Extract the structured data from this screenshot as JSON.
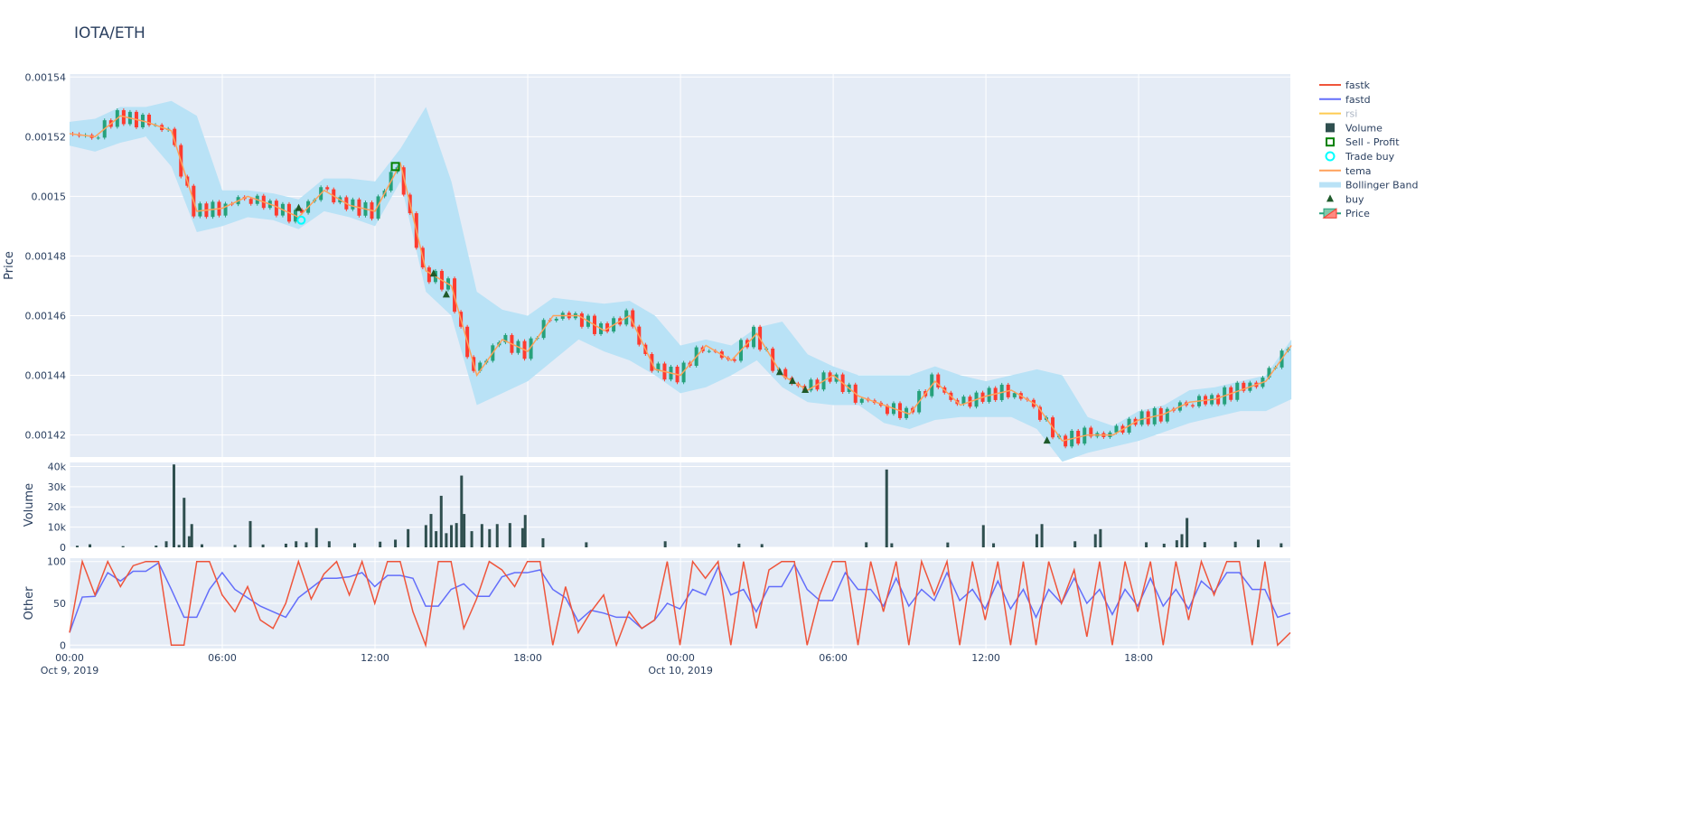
{
  "title": "IOTA/ETH",
  "chart_data": {
    "type": "candlestick-subplots",
    "title": "IOTA/ETH",
    "x_axis": {
      "start": "2019-10-09 00:00",
      "end": "2019-10-10 23:55",
      "tick_labels": [
        [
          "00:00",
          "Oct 9, 2019"
        ],
        [
          "06:00",
          ""
        ],
        [
          "12:00",
          ""
        ],
        [
          "18:00",
          ""
        ],
        [
          "00:00",
          "Oct 10, 2019"
        ],
        [
          "06:00",
          ""
        ],
        [
          "12:00",
          ""
        ],
        [
          "18:00",
          ""
        ]
      ]
    },
    "price": {
      "ylabel": "Price",
      "ylim": [
        0.0014126,
        0.001541
      ],
      "ticks": [
        "0.00142",
        "0.00144",
        "0.00146",
        "0.00148",
        "0.0015",
        "0.00152",
        "0.00154"
      ],
      "close_hourly": [
        0.001521,
        0.00152,
        0.001527,
        0.001525,
        0.001522,
        0.001495,
        0.001496,
        0.0015,
        0.001497,
        0.001493,
        0.001502,
        0.001497,
        0.001495,
        0.001511,
        0.001475,
        0.00147,
        0.00144,
        0.001452,
        0.001448,
        0.00146,
        0.00146,
        0.001455,
        0.00146,
        0.001442,
        0.00144,
        0.00145,
        0.001445,
        0.001454,
        0.00144,
        0.001435,
        0.00144,
        0.001433,
        0.00143,
        0.001427,
        0.001438,
        0.00143,
        0.001433,
        0.001435,
        0.00143,
        0.001418,
        0.00142,
        0.00142,
        0.001425,
        0.001427,
        0.001431,
        0.001432,
        0.001435,
        0.001438,
        0.00145
      ],
      "bb_upper": [
        0.001525,
        0.001526,
        0.00153,
        0.00153,
        0.001532,
        0.001527,
        0.001502,
        0.001502,
        0.001501,
        0.001499,
        0.001506,
        0.001506,
        0.001505,
        0.001516,
        0.00153,
        0.001505,
        0.001468,
        0.001462,
        0.00146,
        0.001466,
        0.001465,
        0.001464,
        0.001465,
        0.00146,
        0.00145,
        0.001452,
        0.00145,
        0.001456,
        0.001458,
        0.001447,
        0.001443,
        0.00144,
        0.00144,
        0.00144,
        0.001443,
        0.00144,
        0.001438,
        0.00144,
        0.001442,
        0.00144,
        0.001426,
        0.001423,
        0.001428,
        0.00143,
        0.001435,
        0.001436,
        0.001438,
        0.00144,
        0.001452
      ],
      "bb_lower": [
        0.001517,
        0.001515,
        0.001518,
        0.00152,
        0.00151,
        0.001488,
        0.00149,
        0.001493,
        0.001492,
        0.001489,
        0.001495,
        0.001493,
        0.00149,
        0.001505,
        0.001468,
        0.00146,
        0.00143,
        0.001434,
        0.001438,
        0.001445,
        0.001452,
        0.001448,
        0.001445,
        0.00144,
        0.001434,
        0.001436,
        0.00144,
        0.001445,
        0.001436,
        0.001431,
        0.00143,
        0.00143,
        0.001424,
        0.001422,
        0.001425,
        0.001426,
        0.001426,
        0.001426,
        0.001422,
        0.001411,
        0.001414,
        0.001416,
        0.001418,
        0.001421,
        0.001424,
        0.001426,
        0.001428,
        0.001428,
        0.001432
      ],
      "buy_markers": [
        [
          9,
          0.001496
        ],
        [
          14.3,
          0.001474
        ],
        [
          14.8,
          0.001467
        ],
        [
          27.9,
          0.001441
        ],
        [
          28.4,
          0.001438
        ],
        [
          28.9,
          0.001435
        ],
        [
          38.4,
          0.001418
        ]
      ],
      "trade_buy": [
        [
          9.1,
          0.001492
        ]
      ],
      "sell_profit": [
        [
          12.8,
          0.00151
        ]
      ]
    },
    "volume": {
      "ylabel": "Volume",
      "ylim": [
        0,
        42000
      ],
      "ticks": [
        "0",
        "10k",
        "20k",
        "30k",
        "40k"
      ],
      "bars": [
        [
          0.3,
          800
        ],
        [
          0.8,
          1500
        ],
        [
          2.1,
          600
        ],
        [
          3.4,
          900
        ],
        [
          3.8,
          3000
        ],
        [
          4.1,
          41000
        ],
        [
          4.3,
          1200
        ],
        [
          4.5,
          24500
        ],
        [
          4.7,
          5500
        ],
        [
          4.8,
          11500
        ],
        [
          5.2,
          1500
        ],
        [
          6.5,
          1200
        ],
        [
          7.1,
          13000
        ],
        [
          7.6,
          1400
        ],
        [
          8.5,
          1800
        ],
        [
          8.9,
          3000
        ],
        [
          9.3,
          2500
        ],
        [
          9.7,
          9500
        ],
        [
          10.2,
          3000
        ],
        [
          11.2,
          2000
        ],
        [
          12.2,
          2800
        ],
        [
          12.8,
          3800
        ],
        [
          13.3,
          9000
        ],
        [
          14.0,
          11000
        ],
        [
          14.2,
          16500
        ],
        [
          14.4,
          8000
        ],
        [
          14.6,
          25500
        ],
        [
          14.8,
          7000
        ],
        [
          15.0,
          11000
        ],
        [
          15.2,
          12000
        ],
        [
          15.4,
          35500
        ],
        [
          15.5,
          16500
        ],
        [
          15.8,
          8000
        ],
        [
          16.2,
          11500
        ],
        [
          16.5,
          9000
        ],
        [
          16.8,
          11500
        ],
        [
          17.3,
          12000
        ],
        [
          17.8,
          9500
        ],
        [
          17.9,
          16000
        ],
        [
          18.6,
          4500
        ],
        [
          20.3,
          2500
        ],
        [
          23.4,
          3000
        ],
        [
          26.3,
          1800
        ],
        [
          27.2,
          1600
        ],
        [
          31.3,
          2500
        ],
        [
          32.1,
          38500
        ],
        [
          32.3,
          2000
        ],
        [
          34.5,
          2400
        ],
        [
          35.9,
          11000
        ],
        [
          36.3,
          2000
        ],
        [
          38.0,
          6500
        ],
        [
          38.2,
          11500
        ],
        [
          39.5,
          3000
        ],
        [
          40.3,
          6500
        ],
        [
          40.5,
          9000
        ],
        [
          42.3,
          2500
        ],
        [
          43.0,
          1800
        ],
        [
          43.5,
          3500
        ],
        [
          43.7,
          6500
        ],
        [
          43.9,
          14500
        ],
        [
          44.6,
          2600
        ],
        [
          45.8,
          2800
        ],
        [
          46.7,
          3800
        ],
        [
          47.6,
          2000
        ]
      ]
    },
    "other": {
      "ylabel": "Other",
      "ylim": [
        -4,
        104
      ],
      "ticks": [
        "0",
        "50",
        "100"
      ],
      "fastk_halfhourly": [
        15,
        100,
        60,
        100,
        70,
        95,
        100,
        100,
        0,
        0,
        100,
        100,
        60,
        40,
        70,
        30,
        20,
        50,
        100,
        55,
        85,
        100,
        60,
        100,
        50,
        100,
        100,
        40,
        0,
        100,
        100,
        20,
        55,
        100,
        90,
        70,
        100,
        100,
        0,
        70,
        15,
        40,
        60,
        0,
        40,
        20,
        30,
        100,
        0,
        100,
        80,
        100,
        0,
        100,
        20,
        90,
        100,
        100,
        0,
        60,
        100,
        100,
        0,
        100,
        40,
        100,
        0,
        100,
        60,
        100,
        0,
        100,
        30,
        100,
        0,
        100,
        0,
        100,
        50,
        90,
        10,
        100,
        0,
        100,
        40,
        100,
        0,
        100,
        30,
        100,
        60,
        100,
        100,
        0,
        100,
        0,
        15
      ]
    },
    "legend": {
      "placement": "right",
      "items": [
        {
          "name": "fastk",
          "color": "#ef553b",
          "kind": "line"
        },
        {
          "name": "fastd",
          "color": "#636efa",
          "kind": "line"
        },
        {
          "name": "rsi",
          "color": "#fecb52",
          "kind": "line",
          "hidden": true
        },
        {
          "name": "Volume",
          "color": "#2f4f4f",
          "kind": "square"
        },
        {
          "name": "Sell - Profit",
          "color": "#008000",
          "kind": "square-open"
        },
        {
          "name": "Trade buy",
          "color": "#00ffff",
          "kind": "circle-open"
        },
        {
          "name": "tema",
          "color": "#ffa15a",
          "kind": "line"
        },
        {
          "name": "Bollinger Band",
          "color": "#b9e2f6",
          "kind": "band"
        },
        {
          "name": "buy",
          "color": "#1f5a2a",
          "kind": "triangle"
        },
        {
          "name": "Price",
          "color": "#26a17b",
          "kind": "candle"
        }
      ]
    },
    "colors": {
      "increasing": "#26a17b",
      "decreasing": "#ff3b2f",
      "plot_bg": "#e5ecf6",
      "grid": "#ffffff"
    }
  }
}
